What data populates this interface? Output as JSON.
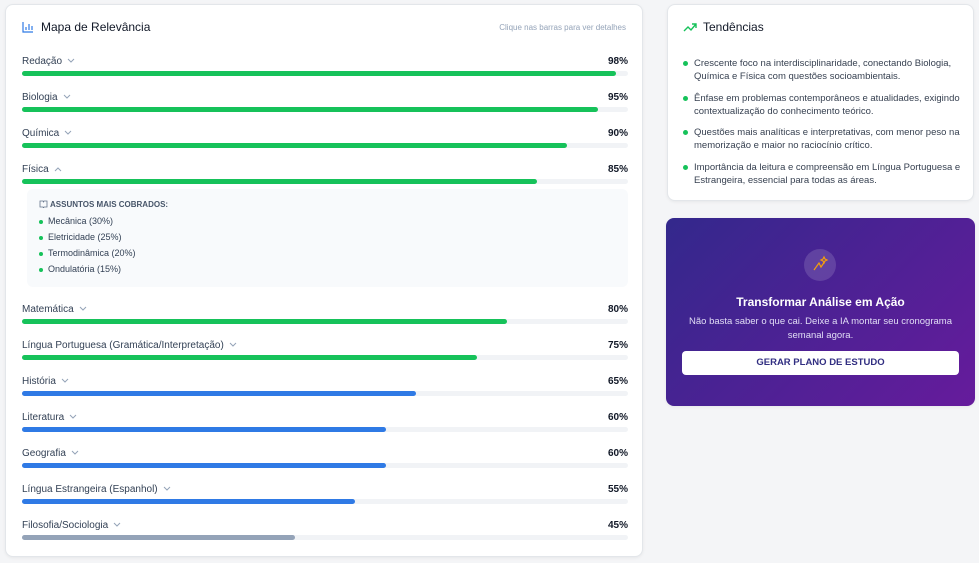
{
  "relevance": {
    "title": "Mapa de Relevância",
    "hint": "Clique nas barras para ver detalhes",
    "items": [
      {
        "name": "Redação",
        "value": 98,
        "value_label": "98%",
        "color": "#16c25a"
      },
      {
        "name": "Biologia",
        "value": 95,
        "value_label": "95%",
        "color": "#16c25a"
      },
      {
        "name": "Química",
        "value": 90,
        "value_label": "90%",
        "color": "#16c25a"
      },
      {
        "name": "Física",
        "value": 85,
        "value_label": "85%",
        "color": "#16c25a",
        "details": {
          "title": "ASSUNTOS MAIS COBRADOS:",
          "topics": [
            "Mecânica (30%)",
            "Eletricidade (25%)",
            "Termodinâmica (20%)",
            "Ondulatória (15%)"
          ]
        }
      },
      {
        "name": "Matemática",
        "value": 80,
        "value_label": "80%",
        "color": "#16c25a"
      },
      {
        "name": "Língua Portuguesa (Gramática/Interpretação)",
        "value": 75,
        "value_label": "75%",
        "color": "#16c25a"
      },
      {
        "name": "História",
        "value": 65,
        "value_label": "65%",
        "color": "#2f7ae5"
      },
      {
        "name": "Literatura",
        "value": 60,
        "value_label": "60%",
        "color": "#2f7ae5"
      },
      {
        "name": "Geografia",
        "value": 60,
        "value_label": "60%",
        "color": "#2f7ae5"
      },
      {
        "name": "Língua Estrangeira (Espanhol)",
        "value": 55,
        "value_label": "55%",
        "color": "#2f7ae5"
      },
      {
        "name": "Filosofia/Sociologia",
        "value": 45,
        "value_label": "45%",
        "color": "#94a3b8"
      }
    ]
  },
  "trends": {
    "title": "Tendências",
    "items": [
      "Crescente foco na interdisciplinaridade, conectando Biologia, Química e Física com questões socioambientais.",
      "Ênfase em problemas contemporâneos e atualidades, exigindo contextualização do conhecimento teórico.",
      "Questões mais analíticas e interpretativas, com menor peso na memorização e maior no raciocínio crítico.",
      "Importância da leitura e compreensão em Língua Portuguesa e Estrangeira, essencial para todas as áreas."
    ]
  },
  "cta": {
    "title": "Transformar Análise em Ação",
    "subtitle": "Não basta saber o que cai. Deixe a IA montar seu cronograma semanal agora.",
    "button": "GERAR PLANO DE ESTUDO"
  }
}
